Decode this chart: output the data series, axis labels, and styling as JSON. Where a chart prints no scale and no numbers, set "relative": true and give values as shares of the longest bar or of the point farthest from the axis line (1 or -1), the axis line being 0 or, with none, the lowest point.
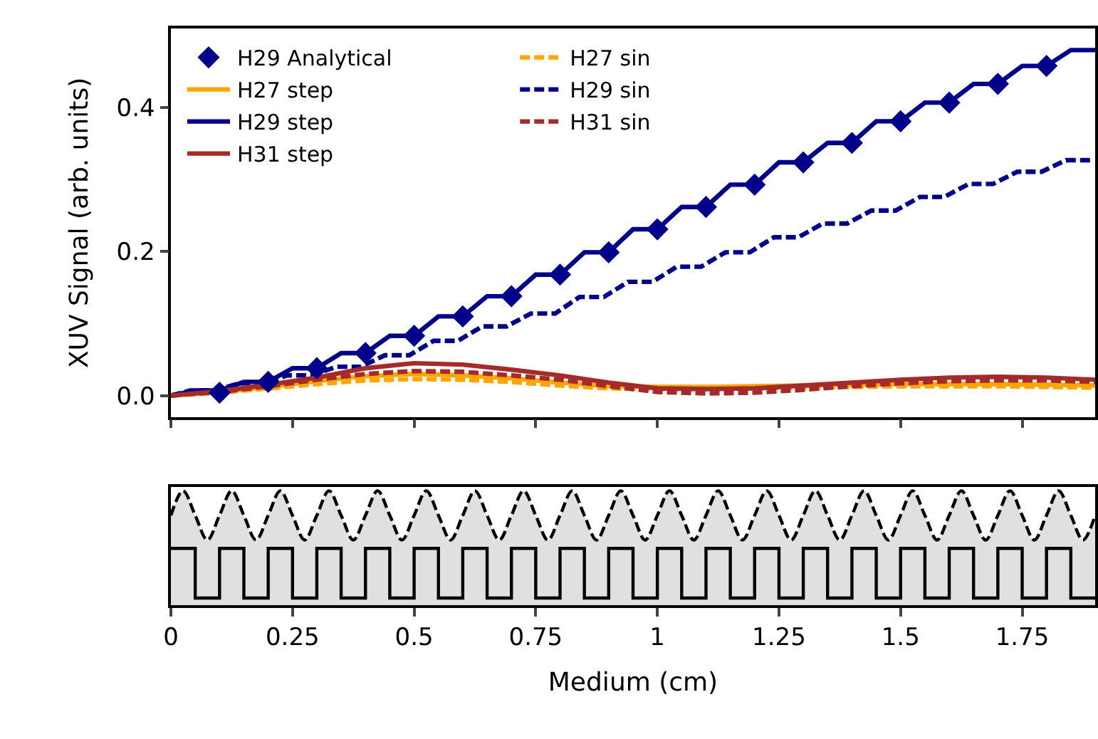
{
  "chart_data": [
    {
      "type": "line",
      "ylabel": "XUV Signal (arb. units)",
      "ylim": [
        -0.03,
        0.51
      ],
      "yticks": [
        {
          "value": 0,
          "label": "0.0"
        },
        {
          "value": 0.2,
          "label": "0.2"
        },
        {
          "value": 0.4,
          "label": "0.4"
        }
      ],
      "xlim": [
        0,
        1.9
      ],
      "xticks": [
        0,
        0.25,
        0.5,
        0.75,
        1,
        1.25,
        1.5,
        1.75
      ],
      "tick_labels": "y",
      "legend": "top left",
      "x": [
        0,
        0.1,
        0.2,
        0.3,
        0.4,
        0.5,
        0.6,
        0.7,
        0.8,
        0.9,
        1,
        1.1,
        1.2,
        1.3,
        1.4,
        1.5,
        1.6,
        1.7,
        1.8,
        1.9
      ],
      "series": [
        {
          "name": "H29 Analytical",
          "type": "scatter",
          "marker": "diamond",
          "color": "#00008b",
          "x": [
            0.1,
            0.2,
            0.3,
            0.4,
            0.5,
            0.6,
            0.7,
            0.8,
            0.9,
            1,
            1.1,
            1.2,
            1.3,
            1.4,
            1.5,
            1.6,
            1.7,
            1.8
          ],
          "values": [
            0.004,
            0.019,
            0.038,
            0.059,
            0.083,
            0.11,
            0.138,
            0.168,
            0.199,
            0.231,
            0.262,
            0.293,
            0.324,
            0.351,
            0.381,
            0.407,
            0.433,
            0.458
          ]
        },
        {
          "name": "H27 sin",
          "line_style": "dashed",
          "color": "#ffa500",
          "values": [
            0,
            0.004,
            0.01,
            0.016,
            0.021,
            0.023,
            0.022,
            0.019,
            0.014,
            0.01,
            0.009,
            0.009,
            0.01,
            0.011,
            0.012,
            0.013,
            0.013,
            0.013,
            0.012,
            0.011
          ]
        },
        {
          "name": "H27 step",
          "line_style": "solid",
          "color": "#ffa500",
          "values": [
            0,
            0.005,
            0.012,
            0.02,
            0.027,
            0.03,
            0.028,
            0.024,
            0.018,
            0.013,
            0.012,
            0.012,
            0.013,
            0.014,
            0.015,
            0.016,
            0.016,
            0.016,
            0.015,
            0.014
          ]
        },
        {
          "name": "H29 sin",
          "line_style": "dashed",
          "color": "#00008b",
          "x": [
            0,
            0.04,
            0.09,
            0.14,
            0.19,
            0.24,
            0.29,
            0.34,
            0.39,
            0.44,
            0.49,
            0.54,
            0.59,
            0.64,
            0.69,
            0.74,
            0.79,
            0.84,
            0.89,
            0.94,
            0.99,
            1.04,
            1.09,
            1.14,
            1.19,
            1.24,
            1.29,
            1.34,
            1.39,
            1.44,
            1.49,
            1.54,
            1.59,
            1.64,
            1.69,
            1.74,
            1.79,
            1.84,
            1.89
          ],
          "values": [
            0,
            0.007,
            0.007,
            0.017,
            0.017,
            0.028,
            0.028,
            0.04,
            0.04,
            0.056,
            0.056,
            0.076,
            0.076,
            0.096,
            0.096,
            0.114,
            0.114,
            0.137,
            0.137,
            0.158,
            0.158,
            0.179,
            0.179,
            0.199,
            0.199,
            0.22,
            0.22,
            0.239,
            0.239,
            0.257,
            0.257,
            0.276,
            0.276,
            0.294,
            0.294,
            0.311,
            0.311,
            0.327,
            0.327
          ]
        },
        {
          "name": "H29 step",
          "line_style": "solid",
          "color": "#00008b",
          "x": [
            0,
            0.05,
            0.1,
            0.15,
            0.2,
            0.25,
            0.3,
            0.35,
            0.4,
            0.45,
            0.5,
            0.55,
            0.6,
            0.65,
            0.7,
            0.75,
            0.8,
            0.85,
            0.9,
            0.95,
            1,
            1.05,
            1.1,
            1.15,
            1.2,
            1.25,
            1.3,
            1.35,
            1.4,
            1.45,
            1.5,
            1.55,
            1.6,
            1.65,
            1.7,
            1.75,
            1.8,
            1.85,
            1.9
          ],
          "values": [
            0,
            0.007,
            0.007,
            0.019,
            0.019,
            0.038,
            0.038,
            0.059,
            0.059,
            0.083,
            0.083,
            0.11,
            0.11,
            0.138,
            0.138,
            0.168,
            0.168,
            0.199,
            0.199,
            0.231,
            0.231,
            0.262,
            0.262,
            0.293,
            0.293,
            0.324,
            0.324,
            0.351,
            0.351,
            0.381,
            0.381,
            0.407,
            0.407,
            0.433,
            0.433,
            0.458,
            0.458,
            0.48,
            0.48
          ]
        },
        {
          "name": "H31 sin",
          "line_style": "dashed",
          "color": "#a52a2a",
          "values": [
            0,
            0.005,
            0.013,
            0.022,
            0.03,
            0.034,
            0.033,
            0.028,
            0.022,
            0.013,
            0.005,
            0.003,
            0.004,
            0.008,
            0.013,
            0.017,
            0.02,
            0.021,
            0.021,
            0.019
          ]
        },
        {
          "name": "H31 step",
          "line_style": "solid",
          "color": "#a52a2a",
          "values": [
            0,
            0.006,
            0.015,
            0.025,
            0.038,
            0.045,
            0.043,
            0.036,
            0.028,
            0.018,
            0.01,
            0.009,
            0.01,
            0.014,
            0.018,
            0.022,
            0.025,
            0.026,
            0.025,
            0.022
          ]
        }
      ]
    },
    {
      "type": "area",
      "relative": true,
      "xlabel": "Medium (cm)",
      "xlim": [
        0,
        1.9
      ],
      "xticks": [
        0,
        0.25,
        0.5,
        0.75,
        1,
        1.25,
        1.5,
        1.75
      ],
      "tick_labels": "x",
      "legend": false,
      "series": [
        {
          "type": "line",
          "line_style": "solid",
          "color": "#000000",
          "x": [
            0,
            0.05,
            0.05,
            0.1,
            0.1,
            0.15,
            0.15,
            0.2,
            0.2,
            0.25,
            0.25,
            0.3,
            0.3,
            0.35,
            0.35,
            0.4,
            0.4,
            0.45,
            0.45,
            0.5,
            0.5,
            0.55,
            0.55,
            0.6,
            0.6,
            0.65,
            0.65,
            0.7,
            0.7,
            0.75,
            0.75,
            0.8,
            0.8,
            0.85,
            0.85,
            0.9,
            0.9,
            0.95,
            0.95,
            1,
            1,
            1.05,
            1.05,
            1.1,
            1.1,
            1.15,
            1.15,
            1.2,
            1.2,
            1.25,
            1.25,
            1.3,
            1.3,
            1.35,
            1.35,
            1.4,
            1.4,
            1.45,
            1.45,
            1.5,
            1.5,
            1.55,
            1.55,
            1.6,
            1.6,
            1.65,
            1.65,
            1.7,
            1.7,
            1.75,
            1.75,
            1.8,
            1.8,
            1.85,
            1.85,
            1.9
          ],
          "values": [
            0.497,
            0.497,
            0.062,
            0.062,
            0.497,
            0.497,
            0.062,
            0.062,
            0.497,
            0.497,
            0.062,
            0.062,
            0.497,
            0.497,
            0.062,
            0.062,
            0.497,
            0.497,
            0.062,
            0.062,
            0.497,
            0.497,
            0.062,
            0.062,
            0.497,
            0.497,
            0.062,
            0.062,
            0.497,
            0.497,
            0.062,
            0.062,
            0.497,
            0.497,
            0.062,
            0.062,
            0.497,
            0.497,
            0.062,
            0.062,
            0.497,
            0.497,
            0.062,
            0.062,
            0.497,
            0.497,
            0.062,
            0.062,
            0.497,
            0.497,
            0.062,
            0.062,
            0.497,
            0.497,
            0.062,
            0.062,
            0.497,
            0.497,
            0.062,
            0.062,
            0.497,
            0.497,
            0.062,
            0.062,
            0.497,
            0.497,
            0.062,
            0.062,
            0.497,
            0.497,
            0.062,
            0.062,
            0.497,
            0.497,
            0.062,
            0.062
          ]
        },
        {
          "type": "area",
          "line_style": "dashed",
          "color": "#000000",
          "x": [
            0,
            0.025,
            0.05,
            0.075,
            0.1,
            0.125,
            0.15,
            0.175,
            0.2,
            0.225,
            0.25,
            0.275,
            0.3,
            0.325,
            0.35,
            0.375,
            0.4,
            0.425,
            0.45,
            0.475,
            0.5,
            0.525,
            0.55,
            0.575,
            0.6,
            0.625,
            0.65,
            0.675,
            0.7,
            0.725,
            0.75,
            0.775,
            0.8,
            0.825,
            0.85,
            0.875,
            0.9,
            0.925,
            0.95,
            0.975,
            1,
            1.025,
            1.05,
            1.075,
            1.1,
            1.125,
            1.15,
            1.175,
            1.2,
            1.225,
            1.25,
            1.275,
            1.3,
            1.325,
            1.35,
            1.375,
            1.4,
            1.425,
            1.45,
            1.475,
            1.5,
            1.525,
            1.55,
            1.575,
            1.6,
            1.625,
            1.65,
            1.675,
            1.7,
            1.725,
            1.75,
            1.775,
            1.8,
            1.825,
            1.85,
            1.875,
            1.9
          ],
          "values": [
            0.785,
            1,
            0.785,
            0.57,
            0.785,
            1,
            0.785,
            0.57,
            0.785,
            1,
            0.785,
            0.57,
            0.785,
            1,
            0.785,
            0.57,
            0.785,
            1,
            0.785,
            0.57,
            0.785,
            1,
            0.785,
            0.57,
            0.785,
            1,
            0.785,
            0.57,
            0.785,
            1,
            0.785,
            0.57,
            0.785,
            1,
            0.785,
            0.57,
            0.785,
            1,
            0.785,
            0.57,
            0.785,
            1,
            0.785,
            0.57,
            0.785,
            1,
            0.785,
            0.57,
            0.785,
            1,
            0.785,
            0.57,
            0.785,
            1,
            0.785,
            0.57,
            0.785,
            1,
            0.785,
            0.57,
            0.785,
            1,
            0.785,
            0.57,
            0.785,
            1,
            0.785,
            0.57,
            0.785,
            1,
            0.785,
            0.57,
            0.785,
            1,
            0.785,
            0.57,
            0.785
          ]
        }
      ]
    }
  ]
}
